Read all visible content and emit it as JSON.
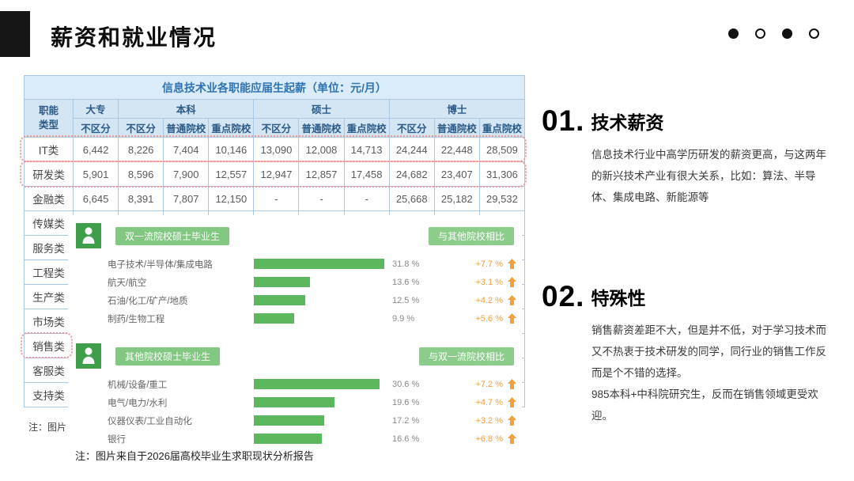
{
  "slide": {
    "title": "薪资和就业情况",
    "footnote": "注：图片来自于2026届高校毕业生求职现状分析报告",
    "footnote_partial": "注：图片"
  },
  "pagination": {
    "dots": [
      "filled",
      "outline",
      "filled",
      "outline"
    ]
  },
  "table": {
    "title": "信息技术业各职能应届生起薪（单位：元/月）",
    "col_header": "职能类型",
    "groups": [
      {
        "label": "大专",
        "cols": [
          "不区分"
        ]
      },
      {
        "label": "本科",
        "cols": [
          "不区分",
          "普通院校",
          "重点院校"
        ]
      },
      {
        "label": "硕士",
        "cols": [
          "不区分",
          "普通院校",
          "重点院校"
        ]
      },
      {
        "label": "博士",
        "cols": [
          "不区分",
          "普通院校",
          "重点院校"
        ]
      }
    ],
    "rows": [
      {
        "label": "IT类",
        "values": [
          "6,442",
          "8,226",
          "7,404",
          "10,146",
          "13,090",
          "12,008",
          "14,713",
          "24,244",
          "22,448",
          "28,509"
        ]
      },
      {
        "label": "研发类",
        "values": [
          "5,901",
          "8,596",
          "7,900",
          "12,557",
          "12,947",
          "12,857",
          "17,458",
          "24,682",
          "23,407",
          "31,306"
        ]
      },
      {
        "label": "金融类",
        "values": [
          "6,645",
          "8,391",
          "7,807",
          "12,150",
          "-",
          "-",
          "-",
          "25,668",
          "25,182",
          "29,532"
        ]
      },
      {
        "label": "传媒类",
        "values": []
      },
      {
        "label": "服务类",
        "values": []
      },
      {
        "label": "工程类",
        "values": []
      },
      {
        "label": "生产类",
        "values": []
      },
      {
        "label": "市场类",
        "values": []
      },
      {
        "label": "销售类",
        "values": []
      },
      {
        "label": "客服类",
        "values": []
      },
      {
        "label": "支持类",
        "values": []
      }
    ]
  },
  "chart_data": [
    {
      "type": "bar",
      "title": "双一流院校硕士毕业生",
      "comparison_label": "与其他院校相比",
      "categories": [
        "电子技术/半导体/集成电路",
        "航天/航空",
        "石油/化工/矿产/地质",
        "制药/生物工程"
      ],
      "values": [
        31.8,
        13.6,
        12.5,
        9.9
      ],
      "value_labels": [
        "31.8 %",
        "13.6 %",
        "12.5 %",
        "9.9 %"
      ],
      "deltas": [
        "+7.7 %",
        "+3.1 %",
        "+4.2 %",
        "+5.6 %"
      ],
      "xlim": [
        0,
        33
      ],
      "legend_position": "none"
    },
    {
      "type": "bar",
      "title": "其他院校硕士毕业生",
      "comparison_label": "与双一流院校相比",
      "categories": [
        "机械/设备/重工",
        "电气/电力/水利",
        "仪器仪表/工业自动化",
        "银行"
      ],
      "values": [
        30.6,
        19.6,
        17.2,
        16.6
      ],
      "value_labels": [
        "30.6 %",
        "19.6 %",
        "17.2 %",
        "16.6 %"
      ],
      "deltas": [
        "+7.2 %",
        "+4.7 %",
        "+3.2 %",
        "+6.8 %"
      ],
      "xlim": [
        0,
        33
      ],
      "legend_position": "none"
    }
  ],
  "sections": [
    {
      "number": "01.",
      "heading": "技术薪资",
      "body": "信息技术行业中高学历研发的薪资更高，与这两年的新兴技术产业有很大关系，比如：算法、半导体、集成电路、新能源等"
    },
    {
      "number": "02.",
      "heading": "特殊性",
      "body": "销售薪资差距不大，但是并不低，对于学习技术而又不热衷于技术研发的同学，同行业的销售工作反而是个不错的选择。\n985本科+中科院研究生，反而在销售领域更受欢迎。"
    }
  ],
  "colors": {
    "accent_black": "#161616",
    "table_header_blue": "#d4e5f4",
    "table_title_text": "#2e74b5",
    "bar_green": "#5cb85c",
    "pill_green": "#82c882",
    "icon_green": "#3f9e4a",
    "delta_orange": "#f2a13c",
    "highlight_red_dotted": "#ee9b9b"
  }
}
